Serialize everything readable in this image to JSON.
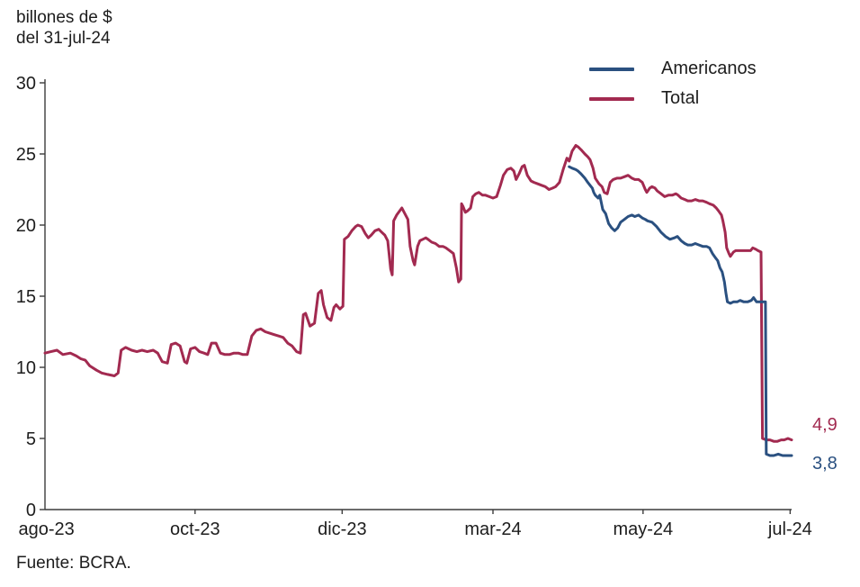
{
  "title": {
    "line1": "billones de $",
    "line2": "del 31-jul-24"
  },
  "source": "Fuente: BCRA.",
  "colors": {
    "americanos": "#2a5080",
    "total": "#a22a50",
    "axis": "#3c3c3c",
    "text": "#1d1d1d"
  },
  "chart_data": {
    "type": "line",
    "title": "billones de $ del 31-jul-24",
    "ylabel": "billones de $",
    "ylim": [
      0,
      30
    ],
    "yticks": [
      0,
      5,
      10,
      15,
      20,
      25,
      30
    ],
    "grid": false,
    "legend_position": "top-right",
    "xticks": [
      {
        "label": "ago-23",
        "f": 0.002
      },
      {
        "label": "oct-23",
        "f": 0.201
      },
      {
        "label": "dic-23",
        "f": 0.398
      },
      {
        "label": "mar-24",
        "f": 0.6
      },
      {
        "label": "may-24",
        "f": 0.801
      },
      {
        "label": "jul-24",
        "f": 0.998
      }
    ],
    "legend": [
      {
        "label": "Americanos",
        "color_key": "americanos"
      },
      {
        "label": "Total",
        "color_key": "total"
      }
    ],
    "end_labels": [
      {
        "series": "Total",
        "text": "4,9",
        "value": 4.9
      },
      {
        "series": "Americanos",
        "text": "3,8",
        "value": 3.8
      }
    ],
    "series": [
      {
        "name": "Total",
        "color_key": "total",
        "points": [
          [
            0.0,
            11.0
          ],
          [
            0.008,
            11.1
          ],
          [
            0.016,
            11.2
          ],
          [
            0.024,
            10.9
          ],
          [
            0.034,
            11.0
          ],
          [
            0.042,
            10.8
          ],
          [
            0.048,
            10.6
          ],
          [
            0.054,
            10.5
          ],
          [
            0.06,
            10.1
          ],
          [
            0.069,
            9.8
          ],
          [
            0.076,
            9.6
          ],
          [
            0.084,
            9.5
          ],
          [
            0.093,
            9.4
          ],
          [
            0.098,
            9.6
          ],
          [
            0.102,
            11.2
          ],
          [
            0.108,
            11.4
          ],
          [
            0.116,
            11.2
          ],
          [
            0.123,
            11.1
          ],
          [
            0.13,
            11.2
          ],
          [
            0.137,
            11.1
          ],
          [
            0.145,
            11.2
          ],
          [
            0.151,
            11.0
          ],
          [
            0.157,
            10.4
          ],
          [
            0.164,
            10.3
          ],
          [
            0.169,
            11.6
          ],
          [
            0.175,
            11.7
          ],
          [
            0.181,
            11.5
          ],
          [
            0.187,
            10.4
          ],
          [
            0.19,
            10.3
          ],
          [
            0.195,
            11.3
          ],
          [
            0.201,
            11.4
          ],
          [
            0.207,
            11.1
          ],
          [
            0.213,
            11.0
          ],
          [
            0.218,
            10.9
          ],
          [
            0.223,
            11.7
          ],
          [
            0.229,
            11.7
          ],
          [
            0.235,
            11.0
          ],
          [
            0.241,
            10.9
          ],
          [
            0.247,
            10.9
          ],
          [
            0.253,
            11.0
          ],
          [
            0.259,
            11.0
          ],
          [
            0.265,
            10.9
          ],
          [
            0.271,
            10.9
          ],
          [
            0.277,
            12.2
          ],
          [
            0.283,
            12.6
          ],
          [
            0.289,
            12.7
          ],
          [
            0.295,
            12.5
          ],
          [
            0.301,
            12.4
          ],
          [
            0.307,
            12.3
          ],
          [
            0.313,
            12.2
          ],
          [
            0.319,
            12.1
          ],
          [
            0.325,
            11.7
          ],
          [
            0.331,
            11.5
          ],
          [
            0.337,
            11.1
          ],
          [
            0.342,
            11.0
          ],
          [
            0.346,
            13.7
          ],
          [
            0.349,
            13.8
          ],
          [
            0.355,
            12.9
          ],
          [
            0.361,
            13.1
          ],
          [
            0.366,
            15.2
          ],
          [
            0.37,
            15.4
          ],
          [
            0.373,
            14.4
          ],
          [
            0.378,
            13.5
          ],
          [
            0.383,
            13.3
          ],
          [
            0.387,
            14.2
          ],
          [
            0.39,
            14.4
          ],
          [
            0.395,
            14.1
          ],
          [
            0.399,
            14.3
          ],
          [
            0.401,
            19.0
          ],
          [
            0.406,
            19.2
          ],
          [
            0.411,
            19.6
          ],
          [
            0.416,
            19.9
          ],
          [
            0.419,
            20.0
          ],
          [
            0.424,
            19.9
          ],
          [
            0.429,
            19.4
          ],
          [
            0.433,
            19.1
          ],
          [
            0.437,
            19.3
          ],
          [
            0.442,
            19.6
          ],
          [
            0.447,
            19.7
          ],
          [
            0.451,
            19.5
          ],
          [
            0.455,
            19.3
          ],
          [
            0.459,
            18.9
          ],
          [
            0.463,
            16.9
          ],
          [
            0.465,
            16.5
          ],
          [
            0.467,
            20.3
          ],
          [
            0.471,
            20.7
          ],
          [
            0.475,
            21.0
          ],
          [
            0.478,
            21.2
          ],
          [
            0.482,
            20.8
          ],
          [
            0.486,
            20.4
          ],
          [
            0.489,
            18.5
          ],
          [
            0.493,
            17.5
          ],
          [
            0.495,
            17.2
          ],
          [
            0.499,
            18.5
          ],
          [
            0.502,
            18.9
          ],
          [
            0.506,
            19.0
          ],
          [
            0.51,
            19.1
          ],
          [
            0.513,
            19.0
          ],
          [
            0.518,
            18.8
          ],
          [
            0.523,
            18.7
          ],
          [
            0.528,
            18.5
          ],
          [
            0.533,
            18.5
          ],
          [
            0.537,
            18.4
          ],
          [
            0.542,
            18.2
          ],
          [
            0.547,
            18.0
          ],
          [
            0.551,
            17.0
          ],
          [
            0.554,
            16.0
          ],
          [
            0.557,
            16.2
          ],
          [
            0.558,
            21.5
          ],
          [
            0.56,
            21.3
          ],
          [
            0.563,
            20.9
          ],
          [
            0.566,
            21.0
          ],
          [
            0.57,
            21.2
          ],
          [
            0.573,
            22.0
          ],
          [
            0.577,
            22.2
          ],
          [
            0.581,
            22.3
          ],
          [
            0.586,
            22.1
          ],
          [
            0.59,
            22.1
          ],
          [
            0.595,
            22.0
          ],
          [
            0.6,
            21.9
          ],
          [
            0.605,
            22.0
          ],
          [
            0.61,
            22.8
          ],
          [
            0.614,
            23.5
          ],
          [
            0.619,
            23.9
          ],
          [
            0.624,
            24.0
          ],
          [
            0.628,
            23.8
          ],
          [
            0.631,
            23.2
          ],
          [
            0.635,
            23.6
          ],
          [
            0.639,
            24.1
          ],
          [
            0.642,
            24.2
          ],
          [
            0.646,
            23.5
          ],
          [
            0.651,
            23.1
          ],
          [
            0.655,
            23.0
          ],
          [
            0.66,
            22.9
          ],
          [
            0.665,
            22.8
          ],
          [
            0.67,
            22.7
          ],
          [
            0.675,
            22.5
          ],
          [
            0.68,
            22.6
          ],
          [
            0.684,
            22.7
          ],
          [
            0.689,
            23.0
          ],
          [
            0.694,
            23.9
          ],
          [
            0.699,
            24.7
          ],
          [
            0.702,
            24.5
          ],
          [
            0.706,
            25.2
          ],
          [
            0.711,
            25.6
          ],
          [
            0.714,
            25.5
          ],
          [
            0.718,
            25.3
          ],
          [
            0.723,
            25.0
          ],
          [
            0.727,
            24.8
          ],
          [
            0.73,
            24.6
          ],
          [
            0.734,
            24.0
          ],
          [
            0.737,
            23.3
          ],
          [
            0.742,
            22.9
          ],
          [
            0.746,
            22.7
          ],
          [
            0.749,
            22.3
          ],
          [
            0.753,
            22.2
          ],
          [
            0.757,
            23.0
          ],
          [
            0.761,
            23.2
          ],
          [
            0.766,
            23.3
          ],
          [
            0.771,
            23.3
          ],
          [
            0.776,
            23.4
          ],
          [
            0.781,
            23.5
          ],
          [
            0.786,
            23.3
          ],
          [
            0.79,
            23.2
          ],
          [
            0.795,
            23.2
          ],
          [
            0.8,
            23.0
          ],
          [
            0.804,
            22.5
          ],
          [
            0.806,
            22.3
          ],
          [
            0.81,
            22.6
          ],
          [
            0.813,
            22.7
          ],
          [
            0.817,
            22.6
          ],
          [
            0.82,
            22.4
          ],
          [
            0.825,
            22.2
          ],
          [
            0.83,
            22.0
          ],
          [
            0.835,
            22.1
          ],
          [
            0.84,
            22.1
          ],
          [
            0.845,
            22.2
          ],
          [
            0.848,
            22.1
          ],
          [
            0.852,
            21.9
          ],
          [
            0.857,
            21.8
          ],
          [
            0.861,
            21.7
          ],
          [
            0.866,
            21.7
          ],
          [
            0.871,
            21.8
          ],
          [
            0.876,
            21.7
          ],
          [
            0.881,
            21.7
          ],
          [
            0.886,
            21.6
          ],
          [
            0.89,
            21.5
          ],
          [
            0.895,
            21.4
          ],
          [
            0.899,
            21.2
          ],
          [
            0.902,
            21.0
          ],
          [
            0.906,
            20.7
          ],
          [
            0.908,
            20.3
          ],
          [
            0.911,
            19.5
          ],
          [
            0.913,
            18.4
          ],
          [
            0.916,
            18.0
          ],
          [
            0.918,
            17.8
          ],
          [
            0.922,
            18.1
          ],
          [
            0.925,
            18.2
          ],
          [
            0.93,
            18.2
          ],
          [
            0.935,
            18.2
          ],
          [
            0.94,
            18.2
          ],
          [
            0.945,
            18.2
          ],
          [
            0.948,
            18.4
          ],
          [
            0.952,
            18.3
          ],
          [
            0.955,
            18.2
          ],
          [
            0.959,
            18.1
          ],
          [
            0.961,
            5.0
          ],
          [
            0.966,
            4.9
          ],
          [
            0.971,
            4.9
          ],
          [
            0.976,
            4.8
          ],
          [
            0.981,
            4.8
          ],
          [
            0.986,
            4.9
          ],
          [
            0.99,
            4.9
          ],
          [
            0.995,
            5.0
          ],
          [
            1.0,
            4.9
          ]
        ]
      },
      {
        "name": "Americanos",
        "color_key": "americanos",
        "points": [
          [
            0.702,
            24.1
          ],
          [
            0.706,
            24.0
          ],
          [
            0.711,
            23.9
          ],
          [
            0.714,
            23.8
          ],
          [
            0.718,
            23.6
          ],
          [
            0.723,
            23.3
          ],
          [
            0.727,
            23.0
          ],
          [
            0.73,
            22.8
          ],
          [
            0.733,
            22.6
          ],
          [
            0.735,
            22.3
          ],
          [
            0.737,
            22.1
          ],
          [
            0.741,
            21.9
          ],
          [
            0.743,
            22.1
          ],
          [
            0.747,
            21.1
          ],
          [
            0.751,
            20.8
          ],
          [
            0.755,
            20.1
          ],
          [
            0.759,
            19.8
          ],
          [
            0.763,
            19.6
          ],
          [
            0.767,
            19.8
          ],
          [
            0.771,
            20.2
          ],
          [
            0.776,
            20.4
          ],
          [
            0.781,
            20.6
          ],
          [
            0.786,
            20.7
          ],
          [
            0.79,
            20.6
          ],
          [
            0.795,
            20.7
          ],
          [
            0.8,
            20.5
          ],
          [
            0.804,
            20.4
          ],
          [
            0.807,
            20.3
          ],
          [
            0.813,
            20.2
          ],
          [
            0.819,
            19.9
          ],
          [
            0.825,
            19.5
          ],
          [
            0.831,
            19.2
          ],
          [
            0.837,
            19.0
          ],
          [
            0.843,
            19.1
          ],
          [
            0.847,
            19.2
          ],
          [
            0.852,
            18.9
          ],
          [
            0.857,
            18.7
          ],
          [
            0.861,
            18.6
          ],
          [
            0.866,
            18.6
          ],
          [
            0.871,
            18.7
          ],
          [
            0.876,
            18.6
          ],
          [
            0.881,
            18.5
          ],
          [
            0.886,
            18.5
          ],
          [
            0.89,
            18.4
          ],
          [
            0.894,
            18.0
          ],
          [
            0.898,
            17.7
          ],
          [
            0.901,
            17.5
          ],
          [
            0.904,
            17.0
          ],
          [
            0.907,
            16.7
          ],
          [
            0.91,
            16.0
          ],
          [
            0.912,
            15.2
          ],
          [
            0.914,
            14.6
          ],
          [
            0.918,
            14.5
          ],
          [
            0.922,
            14.6
          ],
          [
            0.927,
            14.6
          ],
          [
            0.931,
            14.7
          ],
          [
            0.936,
            14.6
          ],
          [
            0.941,
            14.6
          ],
          [
            0.946,
            14.7
          ],
          [
            0.949,
            14.9
          ],
          [
            0.953,
            14.6
          ],
          [
            0.958,
            14.6
          ],
          [
            0.961,
            14.6
          ],
          [
            0.965,
            14.6
          ],
          [
            0.966,
            3.9
          ],
          [
            0.971,
            3.8
          ],
          [
            0.976,
            3.8
          ],
          [
            0.982,
            3.9
          ],
          [
            0.988,
            3.8
          ],
          [
            0.994,
            3.8
          ],
          [
            1.0,
            3.8
          ]
        ]
      }
    ]
  }
}
